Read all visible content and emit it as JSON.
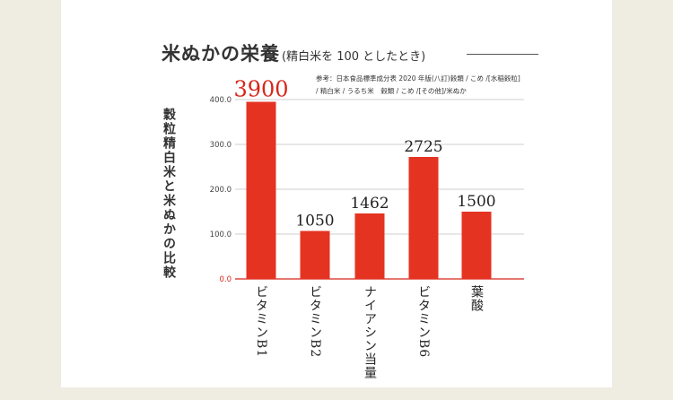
{
  "title": {
    "main": "米ぬかの栄養",
    "sub": "(精白米を 100 としたとき)"
  },
  "source_note": "参考：日本食品標準成分表 2020 年版(八訂)穀類 / こめ /[水稲穀粒]\n/ 精白米 / うるち米　穀類 / こめ /[その他]/米ぬか",
  "chart_data": {
    "type": "bar",
    "ylabel": "穀粒精白米と米ぬかの比較",
    "categories": [
      "ビタミンB1",
      "ビタミンB2",
      "ナイアシン当量",
      "ビタミンB6",
      "葉酸"
    ],
    "category_lines": [
      [
        "ビ",
        "タ",
        "ミ",
        "ン",
        "B1"
      ],
      [
        "ビ",
        "タ",
        "ミ",
        "ン",
        "B2"
      ],
      [
        "ナ",
        "イ",
        "ア",
        "シ",
        "ン",
        "当",
        "量"
      ],
      [
        "ビ",
        "タ",
        "ミ",
        "ン",
        "B6"
      ],
      [
        "葉",
        "酸"
      ]
    ],
    "values": [
      3900,
      1050,
      1462,
      2725,
      1500
    ],
    "bar_heights_percent": [
      395,
      107,
      146,
      272,
      150
    ],
    "data_labels": [
      "3900",
      "1050",
      "1462",
      "2725",
      "1500"
    ],
    "ylim": [
      0,
      400
    ],
    "yticks": [
      0,
      100,
      200,
      300,
      400
    ],
    "ytick_labels": [
      "0.0",
      "100.0",
      "200.0",
      "300.0",
      "400.0"
    ],
    "grid": true,
    "colors": {
      "bar": "#e53322",
      "highlight_label": "#d7261a",
      "label": "#222222",
      "zero_tick": "#d7261a",
      "tick": "#444444",
      "grid": "#cfcfcf"
    }
  }
}
